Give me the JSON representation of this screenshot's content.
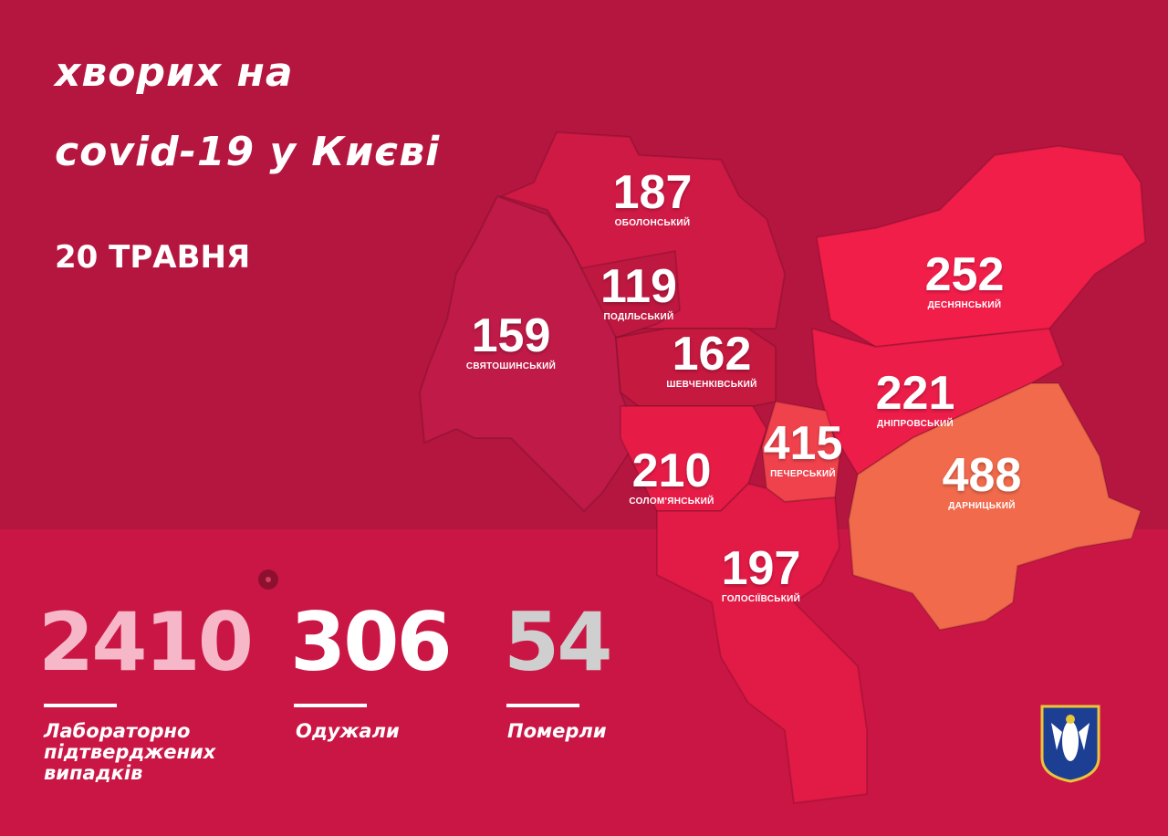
{
  "header": {
    "title_line1": "хворих на",
    "title_line2": "covid-19 у Києві",
    "date": "20 ТРАВНЯ"
  },
  "districts": [
    {
      "name": "ОБОЛОНСЬКИЙ",
      "cases": "187",
      "color": "#d01a46"
    },
    {
      "name": "ПОДІЛЬСЬКИЙ",
      "cases": "119",
      "color": "#be1840"
    },
    {
      "name": "СВЯТОШИНСЬКИЙ",
      "cases": "159",
      "color": "#c01a48"
    },
    {
      "name": "ШЕВЧЕНКІВСЬКИЙ",
      "cases": "162",
      "color": "#c6193f"
    },
    {
      "name": "ДЕСНЯНСЬКИЙ",
      "cases": "252",
      "color": "#f21e4a"
    },
    {
      "name": "ДНІПРОВСЬКИЙ",
      "cases": "221",
      "color": "#ec1d49"
    },
    {
      "name": "СОЛОМ'ЯНСЬКИЙ",
      "cases": "210",
      "color": "#e61c47"
    },
    {
      "name": "ПЕЧЕРСЬКИЙ",
      "cases": "415",
      "color": "#f0424c"
    },
    {
      "name": "ДАРНИЦЬКИЙ",
      "cases": "488",
      "color": "#f26a4c"
    },
    {
      "name": "ГОЛОСІЇВСЬКИЙ",
      "cases": "197",
      "color": "#e21a46"
    }
  ],
  "stats": [
    {
      "value": "2410",
      "label": "Лабораторно підтверджених випадків",
      "color": "#f6b8c8"
    },
    {
      "value": "306",
      "label": "Одужали",
      "color": "#ffffff"
    },
    {
      "value": "54",
      "label": "Померли",
      "color": "#cfcfcf"
    }
  ],
  "icons": [
    "virus-icon",
    "kyiv-coat-of-arms-icon"
  ]
}
